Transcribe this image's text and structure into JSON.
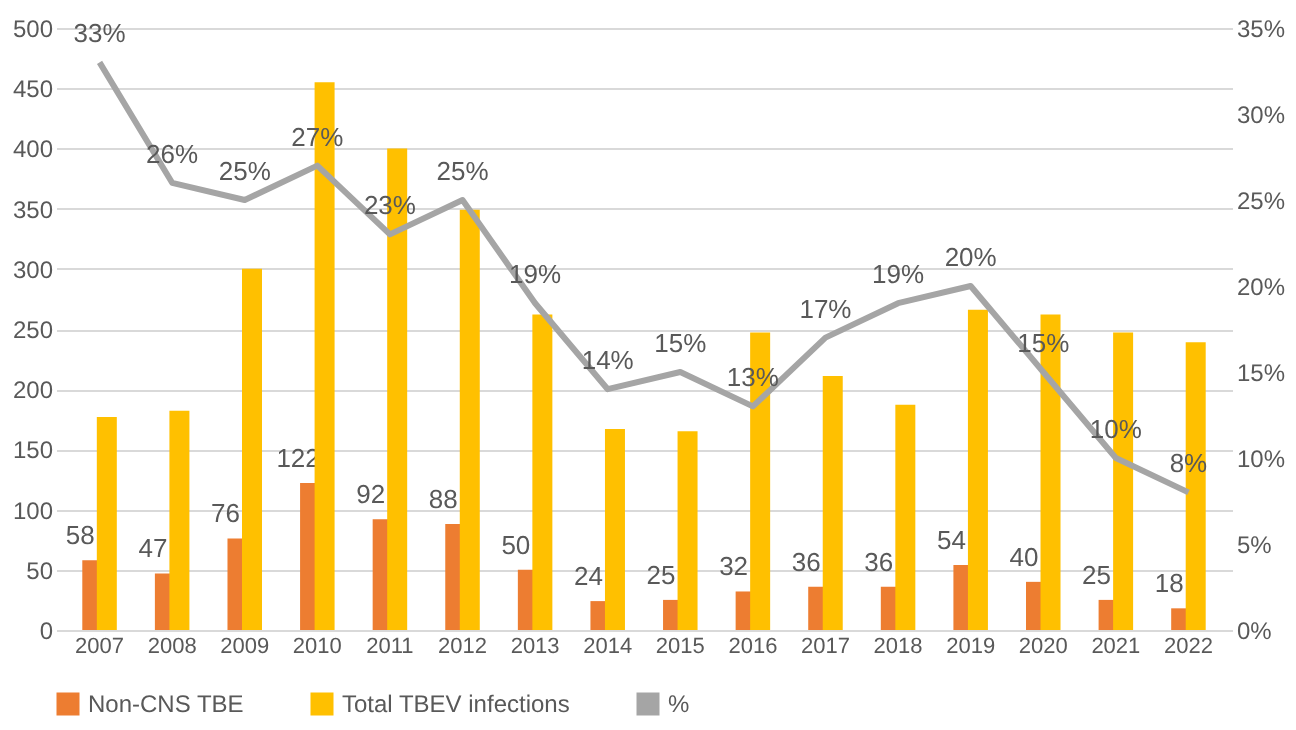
{
  "chart_data": {
    "type": "bar",
    "categories": [
      "2007",
      "2008",
      "2009",
      "2010",
      "2011",
      "2012",
      "2013",
      "2014",
      "2015",
      "2016",
      "2017",
      "2018",
      "2019",
      "2020",
      "2021",
      "2022"
    ],
    "series": [
      {
        "name": "Non-CNS TBE",
        "color": "#ed7d31",
        "values": [
          58,
          47,
          76,
          122,
          92,
          88,
          50,
          24,
          25,
          32,
          36,
          36,
          54,
          40,
          25,
          18
        ],
        "value_labels": [
          "58",
          "47",
          "76",
          "122",
          "92",
          "88",
          "50",
          "24",
          "25",
          "32",
          "36",
          "36",
          "54",
          "40",
          "25",
          "18"
        ]
      },
      {
        "name": "Total TBEV infections",
        "color": "#ffc000",
        "values": [
          177,
          182,
          300,
          455,
          400,
          349,
          262,
          167,
          165,
          247,
          211,
          187,
          266,
          262,
          247,
          239
        ]
      },
      {
        "name": "%",
        "color": "#a5a5a5",
        "type": "line",
        "axis": "y2",
        "values": [
          33,
          26,
          25,
          27,
          23,
          25,
          19,
          14,
          15,
          13,
          17,
          19,
          20,
          15,
          10,
          8
        ],
        "value_labels": [
          "33%",
          "26%",
          "25%",
          "27%",
          "23%",
          "25%",
          "19%",
          "14%",
          "15%",
          "13%",
          "17%",
          "19%",
          "20%",
          "15%",
          "10%",
          "8%"
        ]
      }
    ],
    "ylim": [
      0,
      500
    ],
    "yticks": [
      0,
      50,
      100,
      150,
      200,
      250,
      300,
      350,
      400,
      450,
      500
    ],
    "y2lim": [
      0,
      35
    ],
    "y2ticks": [
      {
        "value": 0,
        "label": "0%"
      },
      {
        "value": 5,
        "label": "5%"
      },
      {
        "value": 10,
        "label": "10%"
      },
      {
        "value": 15,
        "label": "15%"
      },
      {
        "value": 20,
        "label": "20%"
      },
      {
        "value": 25,
        "label": "25%"
      },
      {
        "value": 30,
        "label": "30%"
      },
      {
        "value": 35,
        "label": "35%"
      }
    ],
    "grid": "y",
    "legend": "bottom",
    "marker": "none",
    "line_style": "solid"
  }
}
